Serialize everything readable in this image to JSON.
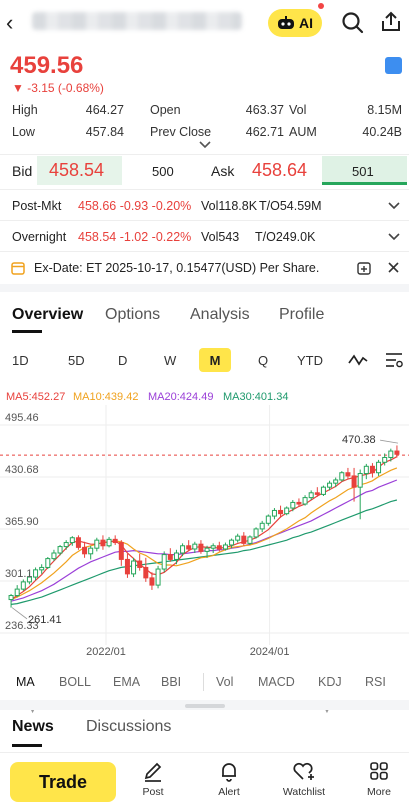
{
  "header": {
    "back": "‹",
    "ai_label": "AI"
  },
  "quote": {
    "price": "459.56",
    "change": "▼ -3.15 (-0.68%)",
    "stats": [
      {
        "label": "High",
        "value": "464.27"
      },
      {
        "label": "Open",
        "value": "463.37"
      },
      {
        "label": "Vol",
        "value": "8.15M"
      },
      {
        "label": "Low",
        "value": "457.84"
      },
      {
        "label": "Prev Close",
        "value": "462.71"
      },
      {
        "label": "AUM",
        "value": "40.24B"
      }
    ]
  },
  "orderbook": {
    "bid_label": "Bid",
    "bid_price": "458.54",
    "bid_size": "500",
    "ask_label": "Ask",
    "ask_price": "458.64",
    "ask_size": "501"
  },
  "extended": [
    {
      "label": "Post-Mkt",
      "quote": "458.66 -0.93 -0.20%",
      "vol": "Vol118.8K",
      "turnover": "T/O54.59M"
    },
    {
      "label": "Overnight",
      "quote": "458.54 -1.02 -0.22%",
      "vol": "Vol543",
      "turnover": "T/O249.0K"
    }
  ],
  "exdate": {
    "text": "Ex-Date: ET 2025-10-17, 0.15477(USD) Per Share."
  },
  "tabs": [
    "Overview",
    "Options",
    "Analysis",
    "Profile"
  ],
  "periods": [
    "1D",
    "5D",
    "D",
    "W",
    "M",
    "Q",
    "YTD"
  ],
  "period_selected": "M",
  "ma_legend": [
    {
      "text": "MA5:452.27",
      "color": "#e8413c"
    },
    {
      "text": "MA10:439.42",
      "color": "#f0a21e"
    },
    {
      "text": "MA20:424.49",
      "color": "#9b40d8"
    },
    {
      "text": "MA30:401.34",
      "color": "#1f9a6d"
    }
  ],
  "chart_data": {
    "type": "candlestick",
    "y_ticks": [
      "495.46",
      "430.68",
      "365.90",
      "301.1",
      "236.33"
    ],
    "x_ticks": [
      "2022/01",
      "2024/01"
    ],
    "annotations": {
      "high": "470.38",
      "low": "261.41"
    },
    "candles": [
      [
        278,
        285,
        268,
        283
      ],
      [
        283,
        296,
        281,
        291
      ],
      [
        291,
        303,
        289,
        300
      ],
      [
        300,
        312,
        297,
        306
      ],
      [
        306,
        318,
        302,
        315
      ],
      [
        315,
        322,
        310,
        318
      ],
      [
        318,
        331,
        316,
        329
      ],
      [
        329,
        340,
        326,
        336
      ],
      [
        336,
        346,
        333,
        344
      ],
      [
        344,
        352,
        340,
        349
      ],
      [
        349,
        357,
        345,
        355
      ],
      [
        355,
        358,
        340,
        343
      ],
      [
        343,
        350,
        330,
        335
      ],
      [
        335,
        345,
        328,
        342
      ],
      [
        342,
        355,
        338,
        352
      ],
      [
        352,
        358,
        340,
        345
      ],
      [
        345,
        356,
        343,
        353
      ],
      [
        353,
        358,
        346,
        349
      ],
      [
        349,
        352,
        320,
        328
      ],
      [
        328,
        335,
        305,
        310
      ],
      [
        310,
        330,
        306,
        326
      ],
      [
        326,
        335,
        314,
        318
      ],
      [
        318,
        330,
        300,
        305
      ],
      [
        305,
        312,
        290,
        296
      ],
      [
        296,
        320,
        292,
        316
      ],
      [
        316,
        338,
        312,
        334
      ],
      [
        334,
        342,
        325,
        328
      ],
      [
        328,
        340,
        322,
        336
      ],
      [
        336,
        348,
        332,
        345
      ],
      [
        345,
        352,
        338,
        341
      ],
      [
        341,
        350,
        336,
        347
      ],
      [
        347,
        352,
        335,
        338
      ],
      [
        338,
        345,
        330,
        342
      ],
      [
        342,
        348,
        336,
        345
      ],
      [
        345,
        350,
        338,
        341
      ],
      [
        341,
        349,
        339,
        346
      ],
      [
        346,
        354,
        342,
        352
      ],
      [
        352,
        360,
        349,
        357
      ],
      [
        357,
        362,
        345,
        348
      ],
      [
        348,
        358,
        346,
        356
      ],
      [
        356,
        368,
        354,
        366
      ],
      [
        366,
        376,
        362,
        373
      ],
      [
        373,
        384,
        370,
        382
      ],
      [
        382,
        392,
        378,
        389
      ],
      [
        389,
        395,
        380,
        385
      ],
      [
        385,
        394,
        383,
        392
      ],
      [
        392,
        402,
        388,
        399
      ],
      [
        399,
        404,
        394,
        397
      ],
      [
        397,
        408,
        395,
        405
      ],
      [
        405,
        414,
        402,
        411
      ],
      [
        411,
        418,
        406,
        409
      ],
      [
        409,
        420,
        407,
        418
      ],
      [
        418,
        426,
        414,
        423
      ],
      [
        423,
        430,
        418,
        427
      ],
      [
        427,
        438,
        425,
        436
      ],
      [
        436,
        442,
        428,
        432
      ],
      [
        432,
        442,
        400,
        418
      ],
      [
        418,
        440,
        378,
        435
      ],
      [
        435,
        447,
        428,
        444
      ],
      [
        444,
        448,
        430,
        436
      ],
      [
        436,
        452,
        432,
        449
      ],
      [
        449,
        460,
        445,
        455
      ],
      [
        455,
        466,
        450,
        463
      ],
      [
        463,
        470,
        455,
        459
      ]
    ],
    "ma5": [
      278,
      283,
      288,
      294,
      302,
      309,
      318,
      326,
      334,
      342,
      349,
      351,
      349,
      347,
      347,
      349,
      350,
      351,
      346,
      336,
      329,
      322,
      316,
      310,
      309,
      312,
      318,
      324,
      334,
      339,
      343,
      344,
      343,
      343,
      342,
      343,
      345,
      348,
      350,
      352,
      355,
      360,
      365,
      373,
      381,
      386,
      390,
      394,
      397,
      402,
      407,
      411,
      415,
      419,
      425,
      428,
      430,
      432,
      434,
      436,
      443,
      449,
      452,
      456
    ],
    "ma10": [
      278,
      281,
      285,
      289,
      294,
      299,
      305,
      311,
      318,
      325,
      333,
      338,
      343,
      345,
      347,
      349,
      350,
      351,
      350,
      347,
      341,
      336,
      333,
      328,
      323,
      321,
      321,
      320,
      322,
      324,
      327,
      330,
      331,
      333,
      337,
      340,
      343,
      344,
      345,
      346,
      348,
      351,
      354,
      358,
      362,
      366,
      371,
      376,
      380,
      386,
      391,
      396,
      401,
      405,
      410,
      415,
      418,
      421,
      423,
      426,
      431,
      435,
      439,
      442
    ],
    "ma20": [
      276,
      278,
      280,
      283,
      286,
      289,
      293,
      297,
      302,
      307,
      312,
      317,
      321,
      325,
      328,
      331,
      334,
      337,
      338,
      338,
      339,
      338,
      337,
      336,
      335,
      335,
      334,
      334,
      335,
      336,
      337,
      338,
      339,
      339,
      340,
      340,
      342,
      343,
      345,
      347,
      349,
      352,
      355,
      358,
      361,
      364,
      367,
      370,
      373,
      376,
      380,
      384,
      388,
      392,
      396,
      400,
      404,
      408,
      412,
      414,
      418,
      421,
      424,
      427
    ],
    "ma30": [
      272,
      273,
      275,
      277,
      279,
      281,
      284,
      287,
      290,
      293,
      296,
      299,
      302,
      305,
      308,
      311,
      314,
      316,
      318,
      319,
      320,
      321,
      322,
      323,
      324,
      325,
      326,
      327,
      328,
      329,
      330,
      331,
      332,
      333,
      334,
      335,
      336,
      337,
      339,
      340,
      342,
      344,
      346,
      348,
      350,
      352,
      355,
      357,
      360,
      362,
      365,
      368,
      371,
      374,
      377,
      380,
      383,
      386,
      389,
      391,
      394,
      397,
      400,
      402
    ]
  },
  "indicators": [
    "MA",
    "BOLL",
    "EMA",
    "BBI",
    "Vol",
    "MACD",
    "KDJ",
    "RSI"
  ],
  "news_tabs": [
    "News",
    "Discussions"
  ],
  "bottom_nav": {
    "trade": "Trade",
    "items": [
      "Post",
      "Alert",
      "Watchlist",
      "More"
    ]
  }
}
